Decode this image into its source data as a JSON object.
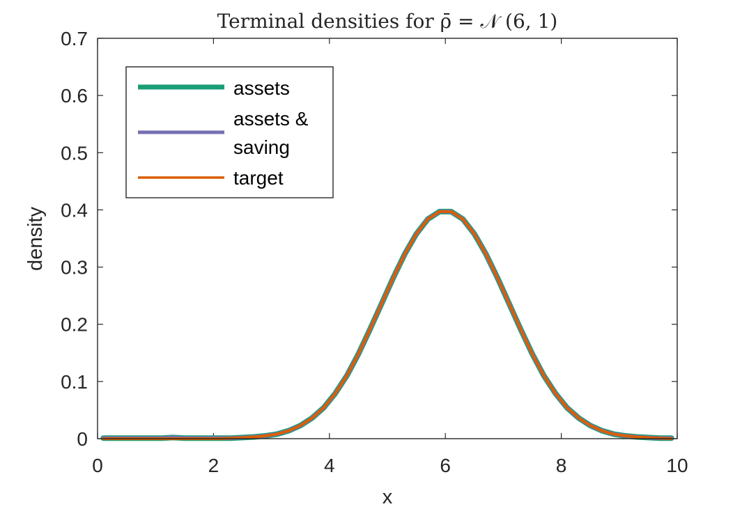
{
  "chart_data": {
    "type": "line",
    "title": "Terminal densities for ρ̄ = 𝒩 (6, 1)",
    "xlabel": "x",
    "ylabel": "density",
    "xlim": [
      0,
      10
    ],
    "ylim": [
      0,
      0.7
    ],
    "xticks": [
      0,
      2,
      4,
      6,
      8,
      10
    ],
    "xtick_labels": [
      "0",
      "2",
      "4",
      "6",
      "8",
      "10"
    ],
    "yticks": [
      0,
      0.1,
      0.2,
      0.3,
      0.4,
      0.5,
      0.6,
      0.7
    ],
    "ytick_labels": [
      "0",
      "0.1",
      "0.2",
      "0.3",
      "0.4",
      "0.5",
      "0.6",
      "0.7"
    ],
    "grid": false,
    "legend_position": "top-left",
    "x": [
      0.1,
      0.3,
      0.5,
      0.7,
      0.9,
      1.1,
      1.3,
      1.5,
      1.7,
      1.9,
      2.1,
      2.3,
      2.5,
      2.7,
      2.9,
      3.1,
      3.3,
      3.5,
      3.7,
      3.9,
      4.1,
      4.3,
      4.5,
      4.7,
      4.9,
      5.1,
      5.3,
      5.5,
      5.7,
      5.9,
      6.1,
      6.3,
      6.5,
      6.7,
      6.9,
      7.1,
      7.3,
      7.5,
      7.7,
      7.9,
      8.1,
      8.3,
      8.5,
      8.7,
      8.9,
      9.1,
      9.3,
      9.5,
      9.7,
      9.9
    ],
    "series": [
      {
        "name": "assets",
        "color": "#1b9e77",
        "values": [
          0.001,
          0.001,
          0.001,
          0.001,
          0.001,
          0.001,
          0.002,
          0.001,
          0.001,
          0.001,
          0.001,
          0.001,
          0.002,
          0.003,
          0.005,
          0.008,
          0.014,
          0.023,
          0.036,
          0.054,
          0.079,
          0.11,
          0.148,
          0.191,
          0.236,
          0.281,
          0.323,
          0.358,
          0.384,
          0.397,
          0.397,
          0.384,
          0.358,
          0.323,
          0.281,
          0.236,
          0.191,
          0.148,
          0.11,
          0.079,
          0.054,
          0.036,
          0.023,
          0.014,
          0.008,
          0.005,
          0.003,
          0.002,
          0.001,
          0.001
        ]
      },
      {
        "name": "assets &\nsaving",
        "legend_lines": [
          "assets &",
          "saving"
        ],
        "color": "#7570b3",
        "values": [
          0.001,
          0.001,
          0.001,
          0.001,
          0.001,
          0.001,
          0.002,
          0.001,
          0.001,
          0.001,
          0.001,
          0.001,
          0.002,
          0.003,
          0.005,
          0.008,
          0.014,
          0.023,
          0.036,
          0.054,
          0.079,
          0.11,
          0.148,
          0.191,
          0.236,
          0.281,
          0.323,
          0.358,
          0.384,
          0.397,
          0.397,
          0.384,
          0.358,
          0.323,
          0.281,
          0.236,
          0.191,
          0.148,
          0.11,
          0.079,
          0.054,
          0.036,
          0.023,
          0.014,
          0.008,
          0.005,
          0.003,
          0.002,
          0.001,
          0.001
        ]
      },
      {
        "name": "target",
        "color": "#d95f02",
        "values": [
          0.0,
          0.0,
          0.0,
          0.0,
          0.0,
          0.0,
          0.0,
          0.0,
          0.0,
          0.0,
          0.0,
          0.001,
          0.002,
          0.003,
          0.005,
          0.008,
          0.014,
          0.023,
          0.036,
          0.054,
          0.079,
          0.11,
          0.148,
          0.191,
          0.236,
          0.281,
          0.323,
          0.358,
          0.384,
          0.397,
          0.397,
          0.384,
          0.358,
          0.323,
          0.281,
          0.236,
          0.191,
          0.148,
          0.11,
          0.079,
          0.054,
          0.036,
          0.023,
          0.014,
          0.008,
          0.005,
          0.003,
          0.002,
          0.001,
          0.0
        ]
      }
    ]
  }
}
